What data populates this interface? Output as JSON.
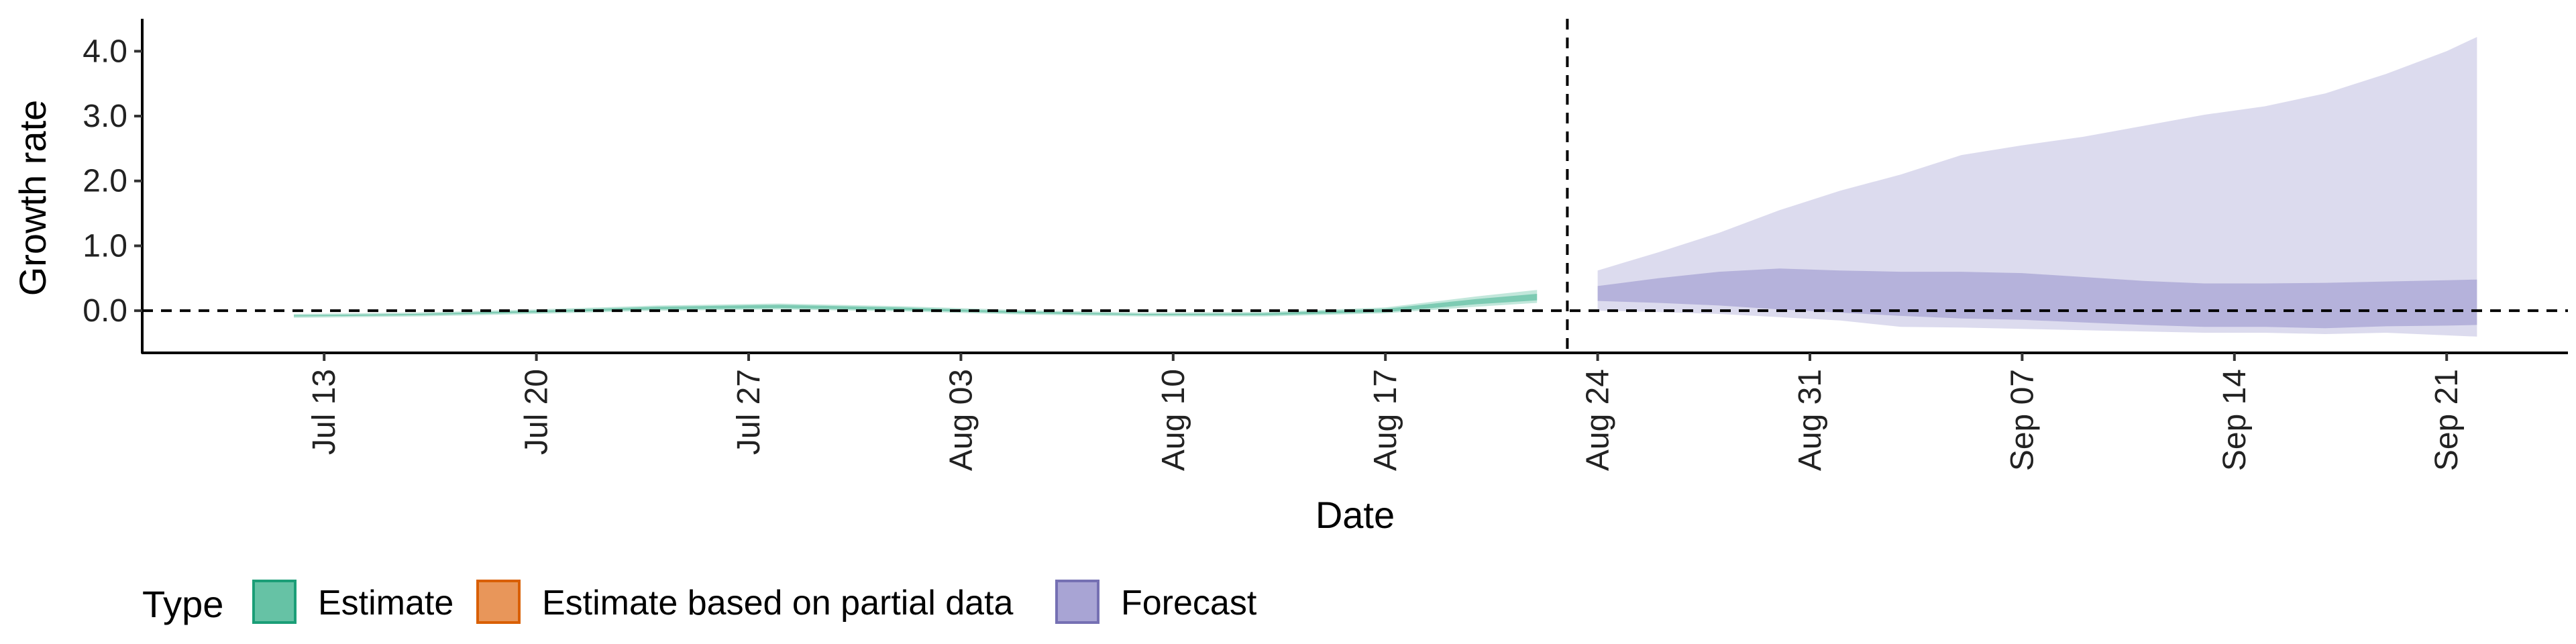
{
  "chart_data": {
    "type": "area",
    "title": "",
    "xlabel": "Date",
    "ylabel": "Growth rate",
    "x_type": "date",
    "xlim": [
      "2020-07-07",
      "2020-09-25"
    ],
    "ylim": [
      -0.65,
      4.5
    ],
    "y_ticks": [
      0.0,
      1.0,
      2.0,
      3.0,
      4.0
    ],
    "y_tick_labels": [
      "0.0",
      "1.0",
      "2.0",
      "3.0",
      "4.0"
    ],
    "x_ticks": [
      "2020-07-13",
      "2020-07-20",
      "2020-07-27",
      "2020-08-03",
      "2020-08-10",
      "2020-08-17",
      "2020-08-24",
      "2020-08-31",
      "2020-09-07",
      "2020-09-14",
      "2020-09-21"
    ],
    "x_tick_labels": [
      "Jul 13",
      "Jul 20",
      "Jul 27",
      "Aug 03",
      "Aug 10",
      "Aug 17",
      "Aug 24",
      "Aug 31",
      "Sep 07",
      "Sep 14",
      "Sep 21"
    ],
    "hline_y": 0,
    "vline_x": "2020-08-23",
    "grid": false,
    "legend": {
      "title": "Type",
      "position": "bottom-left",
      "entries": [
        {
          "label": "Estimate",
          "fill": "#66c2a5",
          "stroke": "#1b9e77"
        },
        {
          "label": "Estimate based on partial data",
          "fill": "#e8965a",
          "stroke": "#d95f02"
        },
        {
          "label": "Forecast",
          "fill": "#a8a4d4",
          "stroke": "#7570b3"
        }
      ]
    },
    "series": [
      {
        "type_ref": "Estimate",
        "x": [
          "2020-07-12",
          "2020-07-16",
          "2020-07-20",
          "2020-07-24",
          "2020-07-28",
          "2020-08-01",
          "2020-08-05",
          "2020-08-09",
          "2020-08-13",
          "2020-08-17",
          "2020-08-20",
          "2020-08-22"
        ],
        "outer_lower": [
          -0.11,
          -0.09,
          -0.05,
          0.0,
          0.02,
          -0.01,
          -0.06,
          -0.09,
          -0.09,
          -0.04,
          0.06,
          0.12
        ],
        "outer_upper": [
          -0.05,
          -0.03,
          0.02,
          0.08,
          0.11,
          0.07,
          0.01,
          -0.03,
          -0.02,
          0.05,
          0.22,
          0.32
        ],
        "inner_lower": [
          -0.09,
          -0.07,
          -0.03,
          0.02,
          0.04,
          0.01,
          -0.04,
          -0.07,
          -0.07,
          -0.02,
          0.1,
          0.16
        ],
        "inner_upper": [
          -0.07,
          -0.05,
          0.0,
          0.06,
          0.09,
          0.05,
          -0.01,
          -0.05,
          -0.04,
          0.03,
          0.18,
          0.26
        ]
      },
      {
        "type_ref": "Forecast",
        "x": [
          "2020-08-24",
          "2020-08-26",
          "2020-08-28",
          "2020-08-30",
          "2020-09-01",
          "2020-09-03",
          "2020-09-05",
          "2020-09-07",
          "2020-09-09",
          "2020-09-11",
          "2020-09-13",
          "2020-09-15",
          "2020-09-17",
          "2020-09-19",
          "2020-09-21",
          "2020-09-22"
        ],
        "outer_lower": [
          0.0,
          -0.02,
          -0.05,
          -0.1,
          -0.15,
          -0.25,
          -0.26,
          -0.28,
          -0.3,
          -0.32,
          -0.34,
          -0.34,
          -0.36,
          -0.34,
          -0.38,
          -0.4
        ],
        "outer_upper": [
          0.62,
          0.9,
          1.2,
          1.55,
          1.85,
          2.1,
          2.4,
          2.55,
          2.68,
          2.85,
          3.02,
          3.15,
          3.35,
          3.65,
          4.0,
          4.22
        ],
        "inner_lower": [
          0.15,
          0.12,
          0.08,
          0.02,
          -0.03,
          -0.08,
          -0.12,
          -0.14,
          -0.18,
          -0.22,
          -0.25,
          -0.25,
          -0.27,
          -0.24,
          -0.23,
          -0.22
        ],
        "inner_upper": [
          0.38,
          0.5,
          0.6,
          0.65,
          0.62,
          0.6,
          0.6,
          0.58,
          0.52,
          0.46,
          0.42,
          0.42,
          0.43,
          0.45,
          0.47,
          0.48
        ]
      }
    ]
  }
}
